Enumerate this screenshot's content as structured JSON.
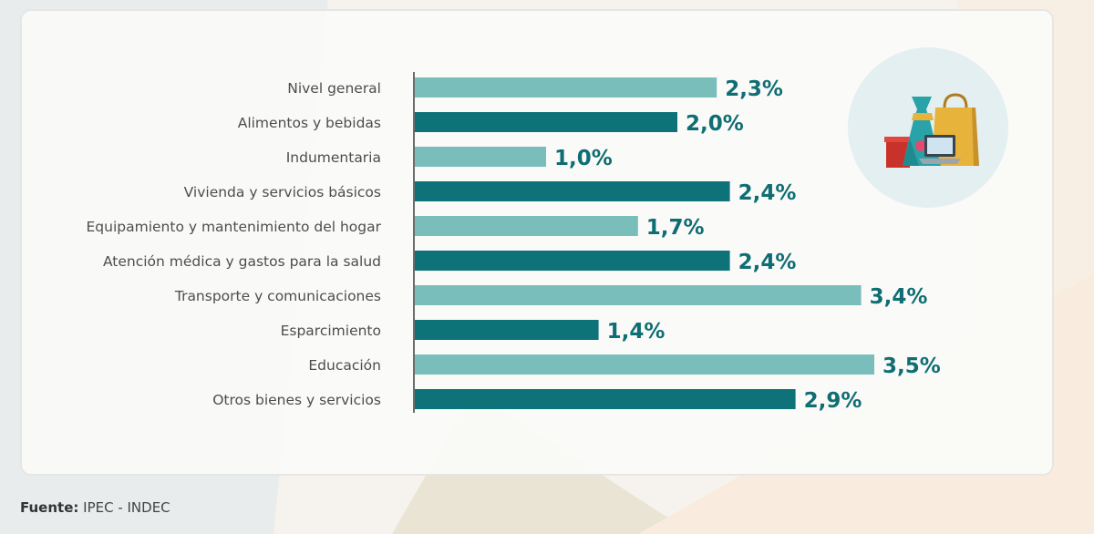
{
  "colors": {
    "bar_light": "#79bebb",
    "bar_dark": "#0e7378",
    "value_text": "#0f6e73",
    "label_text": "#4d4d4d",
    "icon_circle": "#e2eff0"
  },
  "chart_data": {
    "type": "bar",
    "orientation": "horizontal",
    "categories": [
      "Nivel general",
      "Alimentos y bebidas",
      "Indumentaria",
      "Vivienda y servicios básicos",
      "Equipamiento y mantenimiento del hogar",
      "Atención médica y gastos para la salud",
      "Transporte y comunicaciones",
      "Esparcimiento",
      "Educación",
      "Otros bienes y servicios"
    ],
    "values": [
      2.3,
      2.0,
      1.0,
      2.4,
      1.7,
      2.4,
      3.4,
      1.4,
      3.5,
      2.9
    ],
    "value_labels": [
      "2,3%",
      "2,0%",
      "1,0%",
      "2,4%",
      "1,7%",
      "2,4%",
      "3,4%",
      "1,4%",
      "3,5%",
      "2,9%"
    ],
    "title": "",
    "xlabel": "",
    "ylabel": "",
    "xlim": [
      0,
      4
    ],
    "grid": false,
    "legend": "none",
    "bar_color_pattern": [
      "light",
      "dark",
      "light",
      "dark",
      "light",
      "dark",
      "light",
      "dark",
      "light",
      "dark"
    ]
  },
  "decor": {
    "icon": "shopping-icon"
  },
  "source": {
    "label": "Fuente:",
    "text": " IPEC - INDEC"
  }
}
